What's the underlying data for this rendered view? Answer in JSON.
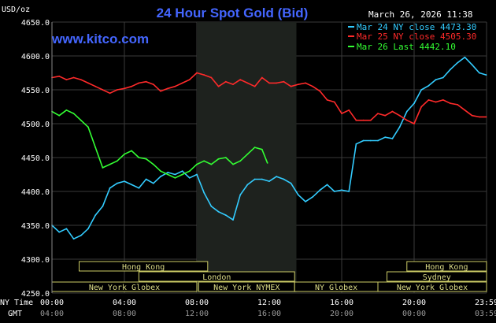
{
  "header": {
    "title": "24 Hour Spot Gold (Bid)",
    "datetime": "March 26, 2026 11:38",
    "watermark": "www.kitco.com",
    "y_unit": "USD/oz"
  },
  "legend": [
    {
      "label": "Mar 24 NY close 4473.30",
      "color": "#33ccff"
    },
    {
      "label": "Mar 25 NY close 4505.30",
      "color": "#ff2a2a"
    },
    {
      "label": "Mar 26 Last 4442.10",
      "color": "#33ff33"
    }
  ],
  "axis": {
    "y_ticks": [
      "4650.0",
      "4600.0",
      "4550.0",
      "4500.0",
      "4450.0",
      "4400.0",
      "4350.0",
      "4300.0",
      "4250.0"
    ],
    "ny_time_label": "NY Time",
    "gmt_label": "GMT",
    "ny_ticks": [
      "00:00",
      "04:00",
      "08:00",
      "12:00",
      "16:00",
      "20:00",
      "23:59"
    ],
    "gmt_ticks": [
      "04:00",
      "08:00",
      "12:00",
      "16:00",
      "20:00",
      "00:00",
      "03:59"
    ]
  },
  "sessions": [
    {
      "label": "Hong Kong",
      "start": 1.5,
      "end": 8.6
    },
    {
      "label": "London",
      "start": 4.8,
      "end": 13.4
    },
    {
      "label": "New York Globex",
      "start": 0.0,
      "end": 8.0
    },
    {
      "label": "New York NYMEX",
      "start": 8.1,
      "end": 13.4
    },
    {
      "label": "NY Globex",
      "start": 13.4,
      "end": 18.0
    },
    {
      "label": "Hong Kong",
      "start": 19.6,
      "end": 24.0
    },
    {
      "label": "Sydney",
      "start": 18.5,
      "end": 24.0
    },
    {
      "label": "New York Globex",
      "start": 18.0,
      "end": 24.0
    }
  ],
  "chart_data": {
    "type": "line",
    "title": "24 Hour Spot Gold (Bid)",
    "ylabel": "USD/oz",
    "xlabel": "NY Time",
    "ylim": [
      4250,
      4650
    ],
    "xlim_hours": [
      0,
      24
    ],
    "shaded_region_hours": [
      8.0,
      13.5
    ],
    "series": [
      {
        "name": "Mar 24 NY close 4473.30",
        "color": "#33ccff",
        "x": [
          0.0,
          0.4,
          0.8,
          1.2,
          1.6,
          2.0,
          2.4,
          2.8,
          3.2,
          3.6,
          4.0,
          4.4,
          4.8,
          5.2,
          5.6,
          6.0,
          6.4,
          6.8,
          7.2,
          7.6,
          8.0,
          8.4,
          8.8,
          9.2,
          9.6,
          10.0,
          10.4,
          10.8,
          11.2,
          11.6,
          12.0,
          12.4,
          12.8,
          13.2,
          13.6,
          14.0,
          14.4,
          14.8,
          15.2,
          15.6,
          16.0,
          16.4,
          16.8,
          17.2,
          17.6,
          18.0,
          18.4,
          18.8,
          19.2,
          19.6,
          20.0,
          20.4,
          20.8,
          21.2,
          21.6,
          22.0,
          22.4,
          22.8,
          23.2,
          23.6,
          23.98
        ],
        "y": [
          4350,
          4340,
          4345,
          4330,
          4335,
          4345,
          4365,
          4378,
          4405,
          4412,
          4415,
          4410,
          4405,
          4418,
          4412,
          4422,
          4428,
          4425,
          4430,
          4420,
          4425,
          4398,
          4378,
          4370,
          4365,
          4358,
          4395,
          4410,
          4418,
          4418,
          4415,
          4422,
          4418,
          4412,
          4395,
          4385,
          4392,
          4402,
          4410,
          4400,
          4402,
          4400,
          4470,
          4475,
          4475,
          4475,
          4480,
          4478,
          4495,
          4518,
          4530,
          4550,
          4556,
          4565,
          4568,
          4580,
          4590,
          4598,
          4587,
          4575,
          4572
        ]
      },
      {
        "name": "Mar 25 NY close 4505.30",
        "color": "#ff2a2a",
        "x": [
          0.0,
          0.4,
          0.8,
          1.2,
          1.6,
          2.0,
          2.4,
          2.8,
          3.2,
          3.6,
          4.0,
          4.4,
          4.8,
          5.2,
          5.6,
          6.0,
          6.4,
          6.8,
          7.2,
          7.6,
          8.0,
          8.4,
          8.8,
          9.2,
          9.6,
          10.0,
          10.4,
          10.8,
          11.2,
          11.6,
          12.0,
          12.4,
          12.8,
          13.2,
          13.6,
          14.0,
          14.4,
          14.8,
          15.2,
          15.6,
          16.0,
          16.4,
          16.8,
          17.2,
          17.6,
          18.0,
          18.4,
          18.8,
          19.2,
          19.6,
          20.0,
          20.4,
          20.8,
          21.2,
          21.6,
          22.0,
          22.4,
          22.8,
          23.2,
          23.6,
          23.98
        ],
        "y": [
          4568,
          4570,
          4565,
          4568,
          4565,
          4560,
          4555,
          4550,
          4545,
          4550,
          4552,
          4555,
          4560,
          4562,
          4558,
          4548,
          4552,
          4555,
          4560,
          4565,
          4575,
          4572,
          4568,
          4555,
          4562,
          4558,
          4565,
          4560,
          4555,
          4568,
          4560,
          4560,
          4562,
          4555,
          4558,
          4560,
          4555,
          4548,
          4535,
          4532,
          4515,
          4520,
          4505,
          4505,
          4505,
          4515,
          4512,
          4518,
          4512,
          4505,
          4500,
          4525,
          4535,
          4532,
          4535,
          4530,
          4528,
          4520,
          4512,
          4510,
          4510
        ]
      },
      {
        "name": "Mar 26 Last 4442.10",
        "color": "#33ff33",
        "x": [
          0.0,
          0.4,
          0.8,
          1.2,
          1.6,
          2.0,
          2.4,
          2.8,
          3.2,
          3.6,
          4.0,
          4.4,
          4.8,
          5.2,
          5.6,
          6.0,
          6.4,
          6.8,
          7.2,
          7.6,
          8.0,
          8.4,
          8.8,
          9.2,
          9.6,
          10.0,
          10.4,
          10.8,
          11.2,
          11.6,
          11.9
        ],
        "y": [
          4518,
          4512,
          4520,
          4515,
          4505,
          4495,
          4465,
          4435,
          4440,
          4445,
          4455,
          4460,
          4450,
          4448,
          4440,
          4430,
          4425,
          4420,
          4425,
          4430,
          4440,
          4445,
          4440,
          4448,
          4450,
          4440,
          4445,
          4455,
          4465,
          4462,
          4442
        ]
      }
    ]
  }
}
